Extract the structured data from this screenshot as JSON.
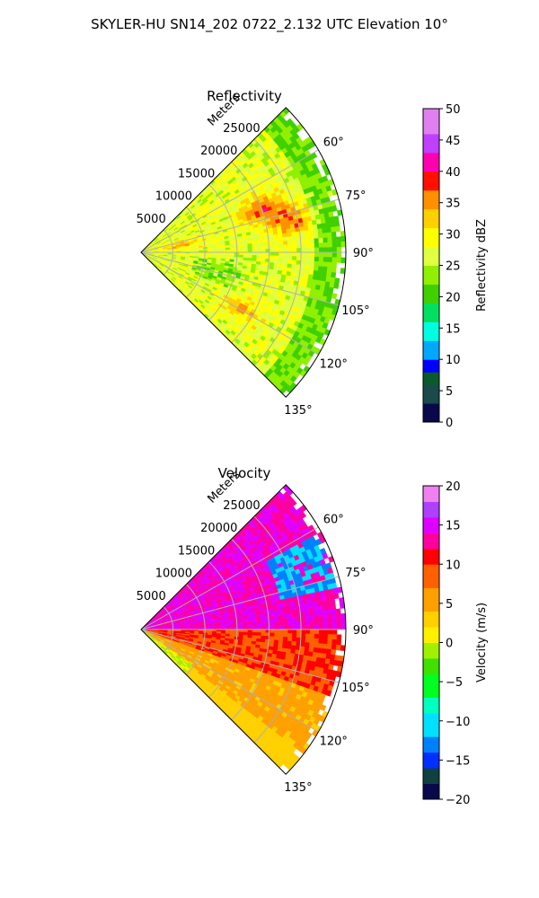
{
  "figure": {
    "suptitle": "SKYLER-HU  SN14_202  0722_2.132 UTC Elevation 10°"
  },
  "chart_data": [
    {
      "type": "heatmap",
      "title": "Reflectivity",
      "radial_axis_label": "Meters",
      "radial_ticks": [
        5000,
        10000,
        15000,
        20000,
        25000
      ],
      "radial_tick_labels": [
        "5000",
        "10000",
        "15000",
        "20000",
        "25000"
      ],
      "radial_range": [
        0,
        32000
      ],
      "azimuth_range_deg": [
        45,
        135
      ],
      "azimuth_ticks_deg": [
        60,
        75,
        90,
        105,
        120,
        135
      ],
      "azimuth_tick_labels": [
        "60°",
        "75°",
        "90°",
        "105°",
        "120°",
        "135°"
      ],
      "colorbar": {
        "label": "Reflectivity dBZ",
        "range": [
          0,
          50
        ],
        "ticks": [
          0,
          5,
          10,
          15,
          20,
          25,
          30,
          35,
          40,
          45,
          50
        ],
        "tick_labels": [
          "0",
          "5",
          "10",
          "15",
          "20",
          "25",
          "30",
          "35",
          "40",
          "45",
          "50"
        ]
      },
      "field_summary": {
        "typical_value": 27,
        "min_observed": 18,
        "max_observed": 38,
        "cores": [
          {
            "azimuth_deg": 70,
            "range_m": 20000,
            "value": 37
          },
          {
            "azimuth_deg": 78,
            "range_m": 24000,
            "value": 36
          },
          {
            "azimuth_deg": 80,
            "range_m": 6000,
            "value": 34
          },
          {
            "azimuth_deg": 120,
            "range_m": 18000,
            "value": 33
          }
        ]
      },
      "grid": true
    },
    {
      "type": "heatmap",
      "title": "Velocity",
      "radial_axis_label": "Meters",
      "radial_ticks": [
        5000,
        10000,
        15000,
        20000,
        25000
      ],
      "radial_tick_labels": [
        "5000",
        "10000",
        "15000",
        "20000",
        "25000"
      ],
      "radial_range": [
        0,
        32000
      ],
      "azimuth_range_deg": [
        45,
        135
      ],
      "azimuth_ticks_deg": [
        60,
        75,
        90,
        105,
        120,
        135
      ],
      "azimuth_tick_labels": [
        "60°",
        "75°",
        "90°",
        "105°",
        "120°",
        "135°"
      ],
      "colorbar": {
        "label": "Velocity (m/s)",
        "range": [
          -20,
          20
        ],
        "ticks": [
          -20,
          -15,
          -10,
          -5,
          0,
          5,
          10,
          15,
          20
        ],
        "tick_labels": [
          "−20",
          "−15",
          "−10",
          "−5",
          "0",
          "5",
          "10",
          "15",
          "20"
        ]
      },
      "field_summary": {
        "azimuth_lt_90_value": 14,
        "azimuth_90_to_110_value": 10,
        "azimuth_gt_110_value": 5,
        "outer_edge_value": 2,
        "cyan_patch": {
          "azimuth_deg": [
            62,
            78
          ],
          "range_m": [
            22000,
            31000
          ],
          "value": -12
        }
      },
      "grid": true
    }
  ]
}
